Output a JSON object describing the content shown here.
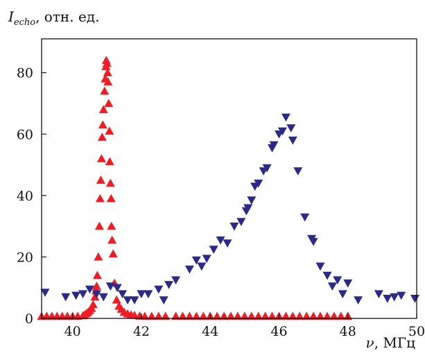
{
  "chart_data": {
    "type": "scatter",
    "title": "",
    "ylabel": {
      "symbol": "I",
      "subscript": "echo",
      "unit": ", отн. ед."
    },
    "xlabel": {
      "symbol": "ν",
      "unit": ", МГц"
    },
    "xlim": [
      39.1,
      50
    ],
    "ylim": [
      0,
      91
    ],
    "xticks": [
      40,
      42,
      44,
      46,
      48,
      50
    ],
    "yticks": [
      0,
      20,
      40,
      60,
      80
    ],
    "grid": false,
    "legend": "none",
    "series": [
      {
        "marker": "triangle-up",
        "color": "#ee1c24",
        "points": [
          [
            39.1,
            0.7
          ],
          [
            39.25,
            0.7
          ],
          [
            39.4,
            0.7
          ],
          [
            39.55,
            0.7
          ],
          [
            39.7,
            0.7
          ],
          [
            39.85,
            0.7
          ],
          [
            40.0,
            0.7
          ],
          [
            40.15,
            0.7
          ],
          [
            40.3,
            0.9
          ],
          [
            40.35,
            1.2
          ],
          [
            40.4,
            1.6
          ],
          [
            40.45,
            2.0
          ],
          [
            40.5,
            2.6
          ],
          [
            40.55,
            3.3
          ],
          [
            40.6,
            4.5
          ],
          [
            40.65,
            7.0
          ],
          [
            40.68,
            9.0
          ],
          [
            40.7,
            10.5
          ],
          [
            40.72,
            14.0
          ],
          [
            40.75,
            20.0
          ],
          [
            40.78,
            30.0
          ],
          [
            40.8,
            39.0
          ],
          [
            40.82,
            45.0
          ],
          [
            40.84,
            52.0
          ],
          [
            40.86,
            59.0
          ],
          [
            40.88,
            63.0
          ],
          [
            40.9,
            68.0
          ],
          [
            40.93,
            74.0
          ],
          [
            40.95,
            78.0
          ],
          [
            40.97,
            82.0
          ],
          [
            40.98,
            84.0
          ],
          [
            41.0,
            83.0
          ],
          [
            41.02,
            80.0
          ],
          [
            41.03,
            77.0
          ],
          [
            41.05,
            70.0
          ],
          [
            41.07,
            61.0
          ],
          [
            41.08,
            51.0
          ],
          [
            41.1,
            44.0
          ],
          [
            41.12,
            39.0
          ],
          [
            41.13,
            30.0
          ],
          [
            41.15,
            25.5
          ],
          [
            41.18,
            21.0
          ],
          [
            41.22,
            11.5
          ],
          [
            41.28,
            6.0
          ],
          [
            41.35,
            4.0
          ],
          [
            41.42,
            3.0
          ],
          [
            41.5,
            2.0
          ],
          [
            41.6,
            1.5
          ],
          [
            41.7,
            1.2
          ],
          [
            41.8,
            1.0
          ],
          [
            41.95,
            0.8
          ],
          [
            42.1,
            0.7
          ],
          [
            42.3,
            0.7
          ],
          [
            42.5,
            0.7
          ],
          [
            42.7,
            0.7
          ],
          [
            43.0,
            0.7
          ],
          [
            43.2,
            0.7
          ],
          [
            43.4,
            0.7
          ],
          [
            43.6,
            0.7
          ],
          [
            43.8,
            0.7
          ],
          [
            44.0,
            0.7
          ],
          [
            44.2,
            0.7
          ],
          [
            44.4,
            0.7
          ],
          [
            44.6,
            0.7
          ],
          [
            44.8,
            0.7
          ],
          [
            45.0,
            0.7
          ],
          [
            45.2,
            0.7
          ],
          [
            45.4,
            0.7
          ],
          [
            45.6,
            0.7
          ],
          [
            45.8,
            0.7
          ],
          [
            46.0,
            0.7
          ],
          [
            46.2,
            0.7
          ],
          [
            46.4,
            0.7
          ],
          [
            46.6,
            0.7
          ],
          [
            46.8,
            0.7
          ],
          [
            47.0,
            0.7
          ],
          [
            47.2,
            0.7
          ],
          [
            47.4,
            0.7
          ],
          [
            47.6,
            0.7
          ],
          [
            47.8,
            0.7
          ],
          [
            48.0,
            0.7
          ]
        ]
      },
      {
        "marker": "triangle-down",
        "color": "#2b2a86",
        "points": [
          [
            39.2,
            8.5
          ],
          [
            39.8,
            7.0
          ],
          [
            40.1,
            7.5
          ],
          [
            40.3,
            8.0
          ],
          [
            40.5,
            9.5
          ],
          [
            40.7,
            8.0
          ],
          [
            40.9,
            7.0
          ],
          [
            41.1,
            10.5
          ],
          [
            41.3,
            10.0
          ],
          [
            41.45,
            8.0
          ],
          [
            41.6,
            6.0
          ],
          [
            41.8,
            6.0
          ],
          [
            42.0,
            8.0
          ],
          [
            42.2,
            8.0
          ],
          [
            42.5,
            9.5
          ],
          [
            42.65,
            6.0
          ],
          [
            42.8,
            11.0
          ],
          [
            43.0,
            12.5
          ],
          [
            43.4,
            16.0
          ],
          [
            43.6,
            19.0
          ],
          [
            43.75,
            17.0
          ],
          [
            43.9,
            19.5
          ],
          [
            44.1,
            22.5
          ],
          [
            44.3,
            25.5
          ],
          [
            44.5,
            24.5
          ],
          [
            44.7,
            30.0
          ],
          [
            44.9,
            31.5
          ],
          [
            45.05,
            35.0
          ],
          [
            45.1,
            36.0
          ],
          [
            45.2,
            38.5
          ],
          [
            45.3,
            43.0
          ],
          [
            45.4,
            44.0
          ],
          [
            45.55,
            48.0
          ],
          [
            45.65,
            49.0
          ],
          [
            45.8,
            55.5
          ],
          [
            45.85,
            56.5
          ],
          [
            46.0,
            60.0
          ],
          [
            46.1,
            61.0
          ],
          [
            46.2,
            65.5
          ],
          [
            46.35,
            62.0
          ],
          [
            46.4,
            58.0
          ],
          [
            46.55,
            48.0
          ],
          [
            46.75,
            33.0
          ],
          [
            46.95,
            26.0
          ],
          [
            47.0,
            25.0
          ],
          [
            47.2,
            17.0
          ],
          [
            47.4,
            14.0
          ],
          [
            47.55,
            10.5
          ],
          [
            47.7,
            12.5
          ],
          [
            47.85,
            8.0
          ],
          [
            48.0,
            11.5
          ],
          [
            48.3,
            6.0
          ],
          [
            48.9,
            8.0
          ],
          [
            49.15,
            6.5
          ],
          [
            49.35,
            7.0
          ],
          [
            49.55,
            7.5
          ],
          [
            49.95,
            6.5
          ]
        ]
      }
    ]
  }
}
